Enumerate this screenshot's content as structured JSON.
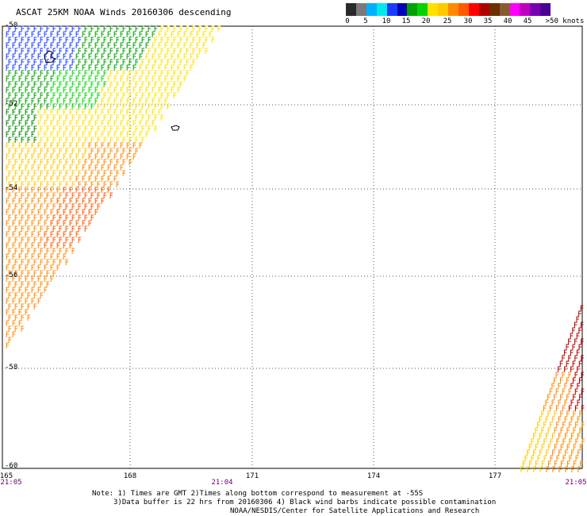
{
  "title": "ASCAT 25KM NOAA Winds 20160306 descending",
  "legend": {
    "colors": [
      "#2a2a2a",
      "#7a7a7a",
      "#00b0ff",
      "#00e8e8",
      "#1a3cff",
      "#0000b8",
      "#00a000",
      "#00d400",
      "#ffe000",
      "#ffc800",
      "#ff8a00",
      "#ff5a00",
      "#ff0000",
      "#b00000",
      "#6a3000",
      "#8a5a30",
      "#ff00ff",
      "#c000c0",
      "#7800b0",
      "#4a0090"
    ],
    "labels": [
      "0",
      "5",
      "10",
      "15",
      "20",
      "25",
      "30",
      "35",
      "40",
      "45",
      ">50 knots"
    ]
  },
  "map": {
    "lat_labels": [
      "-50",
      "-52",
      "-54",
      "-56",
      "-58",
      "-60"
    ],
    "lon_labels": [
      "165",
      "168",
      "171",
      "174",
      "177"
    ],
    "time_labels": [
      "21:05",
      "21:04",
      "21:05"
    ]
  },
  "notes": {
    "line1": "Note: 1) Times are GMT 2)Times along bottom correspond to measurement at -55S",
    "line2": "3)Data buffer is 22 hrs from 20160306 4) Black wind barbs indicate possible contamination",
    "line3": "NOAA/NESDIS/Center for Satellite Applications and Research"
  }
}
